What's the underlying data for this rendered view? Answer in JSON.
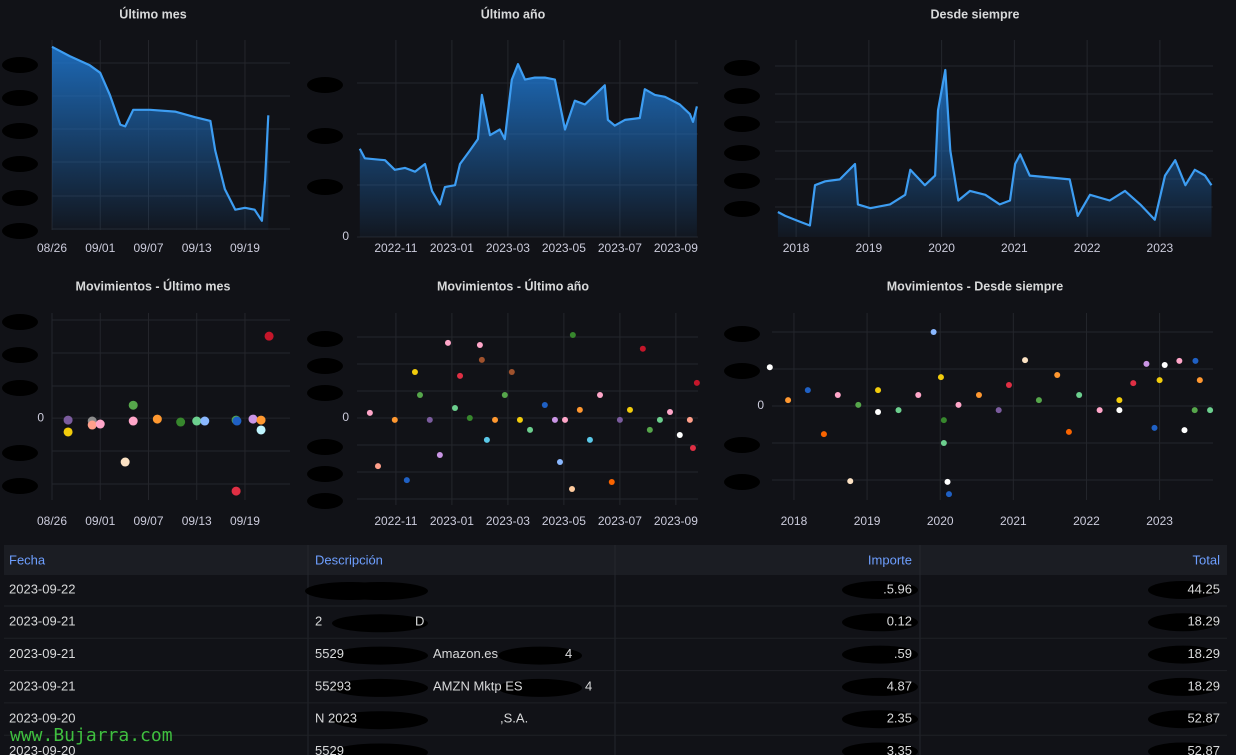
{
  "chart_data": [
    {
      "type": "line",
      "title": "Último mes",
      "color": "#3d9df2",
      "x": [
        0,
        2.2,
        4.7,
        6,
        7.2,
        8.5,
        9.1,
        10.1,
        12.2,
        15.3,
        17.8,
        19.7,
        20.3,
        21.5,
        22.8,
        24,
        25.2,
        26.1,
        26.5,
        26.9
      ],
      "values": [
        99,
        94,
        89,
        85,
        73,
        57,
        56,
        65,
        65,
        64,
        61,
        59,
        43,
        22,
        11,
        12,
        11,
        5,
        27,
        62
      ],
      "xlim": [
        0,
        29.6
      ],
      "ylim": [
        0,
        100
      ],
      "xticks": [
        {
          "value": 0,
          "label": "08/26"
        },
        {
          "value": 6,
          "label": "09/01"
        },
        {
          "value": 12,
          "label": "09/07"
        },
        {
          "value": 18,
          "label": "09/13"
        },
        {
          "value": 24,
          "label": "09/19"
        }
      ]
    },
    {
      "type": "line",
      "title": "Último año",
      "color": "#3d9df2",
      "x": [
        -1.29,
        -1.11,
        -0.39,
        -0.04,
        0.32,
        0.68,
        1.04,
        1.29,
        1.57,
        1.75,
        2.11,
        2.29,
        2.64,
        2.93,
        3.07,
        3.36,
        3.71,
        3.89,
        4.14,
        4.36,
        4.61,
        4.96,
        5.32,
        5.68,
        6.04,
        6.39,
        6.75,
        7.11,
        7.46,
        7.57,
        7.82,
        8.18,
        8.71,
        8.89,
        9.25,
        9.61,
        10.14,
        10.5,
        10.61,
        10.75
      ],
      "values": [
        46,
        41,
        40,
        35,
        36,
        34,
        38,
        24,
        17,
        26,
        27,
        38,
        45,
        51,
        74,
        53,
        56,
        51,
        82,
        90,
        82,
        83,
        83,
        82,
        56,
        71,
        69,
        74,
        79,
        61,
        58,
        61,
        62,
        77,
        74,
        73,
        69,
        64,
        60,
        68
      ],
      "xlim": [
        -1.39,
        10.79
      ],
      "ylim": [
        0,
        100
      ],
      "yticks": [
        0
      ],
      "xticks": [
        {
          "value": 0,
          "label": "2022-11"
        },
        {
          "value": 2,
          "label": "2023-01"
        },
        {
          "value": 4,
          "label": "2023-03"
        },
        {
          "value": 6,
          "label": "2023-05"
        },
        {
          "value": 8,
          "label": "2023-07"
        },
        {
          "value": 10,
          "label": "2023-09"
        }
      ]
    },
    {
      "type": "line",
      "title": "Desde siempre",
      "color": "#3d9df2",
      "x": [
        2017.75,
        2017.85,
        2018.05,
        2018.19,
        2018.26,
        2018.4,
        2018.6,
        2018.81,
        2018.85,
        2019.02,
        2019.29,
        2019.5,
        2019.57,
        2019.77,
        2019.91,
        2019.95,
        2020.05,
        2020.12,
        2020.23,
        2020.39,
        2020.6,
        2020.8,
        2020.94,
        2021.01,
        2021.08,
        2021.21,
        2021.49,
        2021.76,
        2021.87,
        2022.04,
        2022.31,
        2022.52,
        2022.73,
        2022.93,
        2023.07,
        2023.21,
        2023.35,
        2023.48,
        2023.62,
        2023.71
      ],
      "values": [
        13,
        11,
        8,
        6,
        27,
        29,
        30,
        38,
        17,
        15,
        17,
        22,
        35,
        27,
        32,
        66,
        87,
        45,
        19,
        24,
        22,
        17,
        19,
        38,
        43,
        32,
        31,
        30,
        11,
        22,
        19,
        24,
        17,
        9,
        32,
        40,
        27,
        35,
        32,
        27
      ],
      "xlim": [
        2017.71,
        2023.73
      ],
      "ylim": [
        0,
        100
      ],
      "xticks": [
        2018,
        2019,
        2020,
        2021,
        2022,
        2023
      ]
    },
    {
      "type": "scatter",
      "title": "Movimientos - Último mes",
      "x": [
        2,
        2,
        5,
        5,
        6,
        9.1,
        10.1,
        10.1,
        13.1,
        16,
        18,
        19,
        22.9,
        22.9,
        23,
        25,
        26,
        26,
        27
      ],
      "values": [
        -0.06,
        -0.42,
        -0.09,
        -0.21,
        -0.18,
        -1.33,
        0.39,
        -0.09,
        -0.03,
        -0.12,
        -0.09,
        -0.09,
        -0.06,
        -2.21,
        -0.09,
        -0.03,
        -0.06,
        -0.36,
        2.48
      ],
      "colors": [
        "#7b5c9e",
        "#f2cc0c",
        "#8c8c8c",
        "#ff9f8a",
        "#ffa6c9",
        "#fce2c4",
        "#56a64b",
        "#ffa6c9",
        "#ff9830",
        "#37872d",
        "#6ccf8e",
        "#8ab8ff",
        "#56a64b",
        "#e02f44",
        "#1f60c4",
        "#ca95e5",
        "#ff9830",
        "#c0f5ff",
        "#c4162a"
      ],
      "xlim": [
        0,
        29.6
      ],
      "ylim": [
        -2.48,
        3.03
      ],
      "yticks": [
        0
      ],
      "xticks": [
        {
          "value": 0,
          "label": "08/26"
        },
        {
          "value": 6,
          "label": "09/01"
        },
        {
          "value": 12,
          "label": "09/07"
        },
        {
          "value": 18,
          "label": "09/13"
        },
        {
          "value": 24,
          "label": "09/19"
        }
      ]
    },
    {
      "type": "scatter",
      "title": "Movimientos - Último año",
      "x": [
        -0.93,
        -0.64,
        -0.04,
        0.39,
        0.68,
        0.86,
        1.21,
        1.57,
        1.86,
        2.11,
        2.29,
        2.64,
        3,
        3.07,
        3.25,
        3.54,
        3.89,
        4.14,
        4.43,
        4.79,
        5.32,
        5.68,
        5.86,
        6.04,
        6.29,
        6.32,
        6.57,
        6.93,
        7.29,
        7.71,
        8,
        8.36,
        8.82,
        9.07,
        9.43,
        9.79,
        10.14,
        10.5,
        10.61,
        10.75
      ],
      "values": [
        0.19,
        -1.78,
        -0.07,
        -2.3,
        1.7,
        0.85,
        -0.07,
        -1.37,
        2.78,
        0.37,
        1.56,
        0,
        2.7,
        2.15,
        -0.81,
        -0.07,
        0.85,
        1.7,
        -0.07,
        -0.44,
        0.48,
        -0.07,
        -1.63,
        -0.07,
        -2.63,
        3.07,
        0.3,
        -0.81,
        0.85,
        -2.37,
        -0.07,
        0.3,
        2.56,
        -0.44,
        -0.07,
        0.22,
        -0.63,
        -0.07,
        -1.11,
        1.3
      ],
      "colors": [
        "#ffa6c9",
        "#ff9f8a",
        "#ff9830",
        "#1f60c4",
        "#f2cc0c",
        "#56a64b",
        "#7b5c9e",
        "#ca95e5",
        "#ffa6c9",
        "#6ccf8e",
        "#e02f44",
        "#37872d",
        "#ffa6c9",
        "#a0522d",
        "#5ac8e8",
        "#ff9830",
        "#56a64b",
        "#a0522d",
        "#f2cc0c",
        "#6ccf8e",
        "#1f60c4",
        "#ca95e5",
        "#8ab8ff",
        "#ffa6c9",
        "#ffcb9e",
        "#37872d",
        "#ff9830",
        "#5ac8e8",
        "#ffa6c9",
        "#fa6400",
        "#7b5c9e",
        "#f2cc0c",
        "#c4162a",
        "#56a64b",
        "#6ccf8e",
        "#ffa6c9",
        "#ffffff",
        "#ff9f8a",
        "#e02f44",
        "#c4162a"
      ],
      "xlim": [
        -1.39,
        10.79
      ],
      "ylim": [
        -3.22,
        3.7
      ],
      "yticks": [
        0
      ],
      "xticks": [
        {
          "value": 0,
          "label": "2022-11"
        },
        {
          "value": 2,
          "label": "2023-01"
        },
        {
          "value": 4,
          "label": "2023-03"
        },
        {
          "value": 6,
          "label": "2023-05"
        },
        {
          "value": 8,
          "label": "2023-07"
        },
        {
          "value": 10,
          "label": "2023-09"
        }
      ]
    },
    {
      "type": "scatter",
      "title": "Movimientos - Desde siempre",
      "x": [
        2017.67,
        2017.92,
        2018.19,
        2018.41,
        2018.6,
        2018.77,
        2018.88,
        2019.15,
        2019.43,
        2019.7,
        2019.91,
        2020.01,
        2020.05,
        2020.05,
        2020.1,
        2020.12,
        2020.25,
        2020.53,
        2020.8,
        2020.94,
        2021.16,
        2021.35,
        2021.6,
        2021.76,
        2021.9,
        2022.18,
        2022.45,
        2022.64,
        2022.82,
        2022.93,
        2023,
        2023.07,
        2023.27,
        2023.34,
        2023.49,
        2023.55,
        2023.69,
        2023.48,
        2022.45,
        2019.15
      ],
      "values": [
        1.05,
        0.16,
        0.43,
        -0.76,
        0.3,
        -2.03,
        0.03,
        0.43,
        -0.11,
        0.3,
        2,
        0.78,
        -0.38,
        -1,
        -2.05,
        -2.38,
        0.03,
        0.3,
        -0.11,
        0.57,
        1.24,
        0.16,
        0.84,
        -0.7,
        0.3,
        -0.11,
        0.16,
        0.62,
        1.14,
        -0.59,
        0.7,
        1.11,
        1.22,
        -0.65,
        1.22,
        0.7,
        -0.11,
        -0.11,
        -0.11,
        -0.16
      ],
      "colors": [
        "#ffffff",
        "#ff9830",
        "#1f60c4",
        "#fa6400",
        "#ffa6c9",
        "#fce2c4",
        "#56a64b",
        "#f2cc0c",
        "#6ccf8e",
        "#ffa6c9",
        "#8ab8ff",
        "#f2cc0c",
        "#37872d",
        "#6ccf8e",
        "#ffffff",
        "#1f60c4",
        "#ffa6c9",
        "#ff9830",
        "#7b5c9e",
        "#e02f44",
        "#fce2c4",
        "#56a64b",
        "#ff9830",
        "#fa6400",
        "#6ccf8e",
        "#ffa6c9",
        "#f2cc0c",
        "#e02f44",
        "#ca95e5",
        "#1f60c4",
        "#f2cc0c",
        "#ffffff",
        "#ffa6c9",
        "#ffffff",
        "#1f60c4",
        "#ff9830",
        "#6ccf8e",
        "#56a64b",
        "#ffffff",
        "#ffffff"
      ],
      "xlim": [
        2017.7,
        2023.73
      ],
      "ylim": [
        -2.54,
        2.38
      ],
      "yticks": [
        0
      ],
      "xticks": [
        2018,
        2019,
        2020,
        2021,
        2022,
        2023
      ]
    }
  ],
  "table": {
    "columns": [
      "Fecha",
      "Descripción",
      "Importe",
      "Total"
    ],
    "rows": [
      {
        "fecha": "2023-09-22",
        "importe": ".5.96",
        "total": "44.25"
      },
      {
        "fecha": "2023-09-21",
        "descripcion": [
          "2",
          "D"
        ],
        "importe": "0.12",
        "total": "18.29"
      },
      {
        "fecha": "2023-09-21",
        "descripcion": [
          "5529",
          "Amazon.es",
          "4"
        ],
        "importe": ".59",
        "total": "18.29"
      },
      {
        "fecha": "2023-09-21",
        "descripcion": [
          "55293",
          "AMZN Mktp ES",
          "4"
        ],
        "importe": "4.87",
        "total": "18.29"
      },
      {
        "fecha": "2023-09-20",
        "descripcion": [
          "N 2023",
          ",S.A."
        ],
        "importe": "2.35",
        "total": "52.87"
      },
      {
        "fecha": "2023-09-20",
        "descripcion": [
          "5529"
        ],
        "importe": "3.35",
        "total": "52.87"
      }
    ]
  },
  "watermark": "www.Bujarra.com"
}
